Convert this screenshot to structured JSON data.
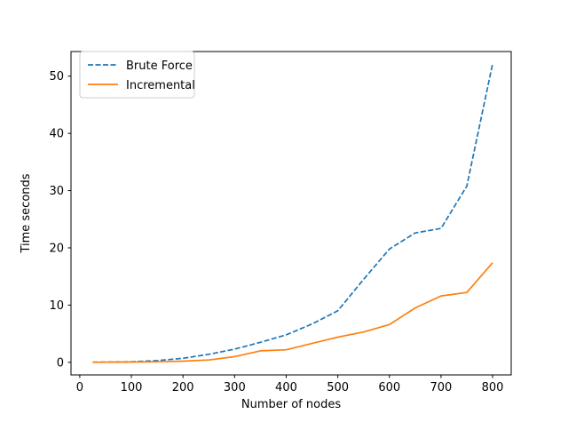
{
  "chart_data": {
    "type": "line",
    "title": "",
    "xlabel": "Number of nodes",
    "ylabel": "Time seconds",
    "xlim": [
      -17,
      836
    ],
    "ylim": [
      -2.2,
      54.3
    ],
    "xticks": [
      0,
      100,
      200,
      300,
      400,
      500,
      600,
      700,
      800
    ],
    "yticks": [
      0,
      10,
      20,
      30,
      40,
      50
    ],
    "grid": false,
    "legend_position": "upper-left",
    "x": [
      25,
      50,
      100,
      150,
      200,
      250,
      300,
      350,
      400,
      450,
      500,
      550,
      600,
      650,
      700,
      750,
      800
    ],
    "series": [
      {
        "name": "Brute Force",
        "color": "#1f77b4",
        "linestyle": "dashed",
        "values": [
          0.02,
          0.04,
          0.1,
          0.3,
          0.7,
          1.4,
          2.3,
          3.5,
          4.8,
          6.7,
          9.0,
          14.5,
          19.8,
          22.6,
          23.4,
          30.8,
          52.2
        ]
      },
      {
        "name": "Incremental",
        "color": "#ff7f0e",
        "linestyle": "solid",
        "values": [
          0.01,
          0.02,
          0.05,
          0.1,
          0.2,
          0.4,
          1.0,
          2.0,
          2.2,
          3.3,
          4.4,
          5.3,
          6.6,
          9.5,
          11.6,
          12.2,
          17.4
        ]
      }
    ]
  },
  "figure": {
    "background": "#ffffff"
  }
}
